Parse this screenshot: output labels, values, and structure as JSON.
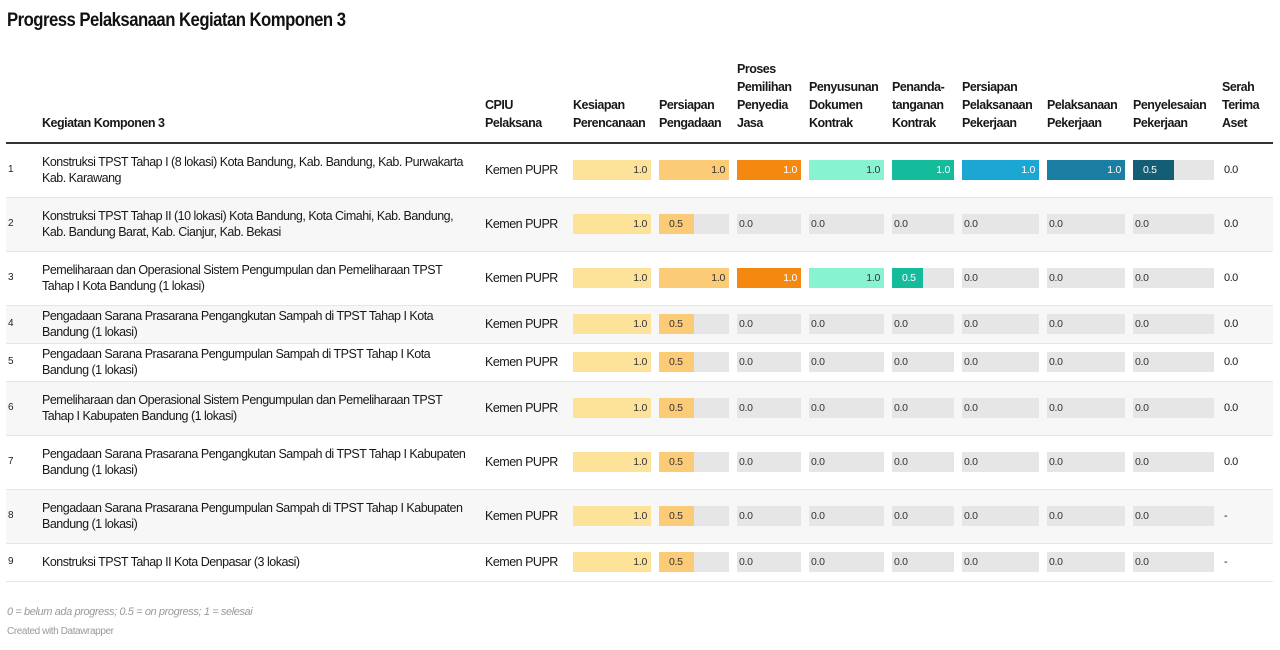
{
  "title": "Progress Pelaksanaan Kegiatan Komponen 3",
  "columns": {
    "no": "",
    "activity": "Kegiatan Komponen 3",
    "cpiu": "CPIU Pelaksana",
    "stages": [
      "Kesiapan Perencanaan",
      "Persiapan Pengadaan",
      "Proses Pemilihan Penyedia Jasa",
      "Penyusunan Dokumen Kontrak",
      "Penanda-tanganan Kontrak",
      "Persiapan Pelaksanaan Pekerjaan",
      "Pelaksanaan Pekerjaan",
      "Penyelesaian Pekerjaan"
    ],
    "serah": "Serah Terima Aset"
  },
  "stage_colors": [
    "#fde39a",
    "#fccb77",
    "#f5890f",
    "#88f3d1",
    "#14bc9c",
    "#1ba6d3",
    "#1b7ea3",
    "#135e75"
  ],
  "chart_data": {
    "type": "table",
    "title": "Progress Pelaksanaan Kegiatan Komponen 3",
    "scale": [
      0,
      1
    ],
    "rows": [
      {
        "no": "1",
        "activity": "Konstruksi TPST Tahap I (8 lokasi) Kota Bandung, Kab. Bandung, Kab. Purwakarta Kab. Karawang",
        "cpiu": "Kemen PUPR",
        "values": [
          1.0,
          1.0,
          1.0,
          1.0,
          1.0,
          1.0,
          1.0,
          0.5
        ],
        "serah": "0.0"
      },
      {
        "no": "2",
        "activity": "Konstruksi TPST Tahap II (10 lokasi) Kota Bandung, Kota Cimahi, Kab. Bandung, Kab. Bandung Barat, Kab. Cianjur, Kab. Bekasi",
        "cpiu": "Kemen PUPR",
        "values": [
          1.0,
          0.5,
          0.0,
          0.0,
          0.0,
          0.0,
          0.0,
          0.0
        ],
        "serah": "0.0"
      },
      {
        "no": "3",
        "activity": "Pemeliharaan dan Operasional Sistem Pengumpulan dan Pemeliharaan TPST Tahap I Kota Bandung (1 lokasi)",
        "cpiu": "Kemen PUPR",
        "values": [
          1.0,
          1.0,
          1.0,
          1.0,
          0.5,
          0.0,
          0.0,
          0.0
        ],
        "serah": "0.0"
      },
      {
        "no": "4",
        "activity": "Pengadaan Sarana Prasarana Pengangkutan Sampah di TPST Tahap I Kota Bandung (1 lokasi)",
        "cpiu": "Kemen PUPR",
        "values": [
          1.0,
          0.5,
          0.0,
          0.0,
          0.0,
          0.0,
          0.0,
          0.0
        ],
        "serah": "0.0"
      },
      {
        "no": "5",
        "activity": "Pengadaan Sarana Prasarana Pengumpulan Sampah di TPST Tahap I Kota Bandung (1 lokasi)",
        "cpiu": "Kemen PUPR",
        "values": [
          1.0,
          0.5,
          0.0,
          0.0,
          0.0,
          0.0,
          0.0,
          0.0
        ],
        "serah": "0.0"
      },
      {
        "no": "6",
        "activity": "Pemeliharaan dan Operasional Sistem Pengumpulan dan Pemeliharaan TPST Tahap I Kabupaten Bandung (1 lokasi)",
        "cpiu": "Kemen PUPR",
        "values": [
          1.0,
          0.5,
          0.0,
          0.0,
          0.0,
          0.0,
          0.0,
          0.0
        ],
        "serah": "0.0"
      },
      {
        "no": "7",
        "activity": "Pengadaan Sarana Prasarana Pengangkutan Sampah di TPST Tahap I Kabupaten Bandung (1 lokasi)",
        "cpiu": "Kemen PUPR",
        "values": [
          1.0,
          0.5,
          0.0,
          0.0,
          0.0,
          0.0,
          0.0,
          0.0
        ],
        "serah": "0.0"
      },
      {
        "no": "8",
        "activity": "Pengadaan Sarana Prasarana Pengumpulan Sampah di TPST Tahap I Kabupaten Bandung (1 lokasi)",
        "cpiu": "Kemen PUPR",
        "values": [
          1.0,
          0.5,
          0.0,
          0.0,
          0.0,
          0.0,
          0.0,
          0.0
        ],
        "serah": "-"
      },
      {
        "no": "9",
        "activity": "Konstruksi TPST Tahap II Kota Denpasar (3 lokasi)",
        "cpiu": "Kemen PUPR",
        "values": [
          1.0,
          0.5,
          0.0,
          0.0,
          0.0,
          0.0,
          0.0,
          0.0
        ],
        "serah": "-"
      }
    ]
  },
  "footer": {
    "note": "0 = belum ada progress; 0.5 = on progress; 1 = selesai",
    "credit": "Created with Datawrapper"
  }
}
